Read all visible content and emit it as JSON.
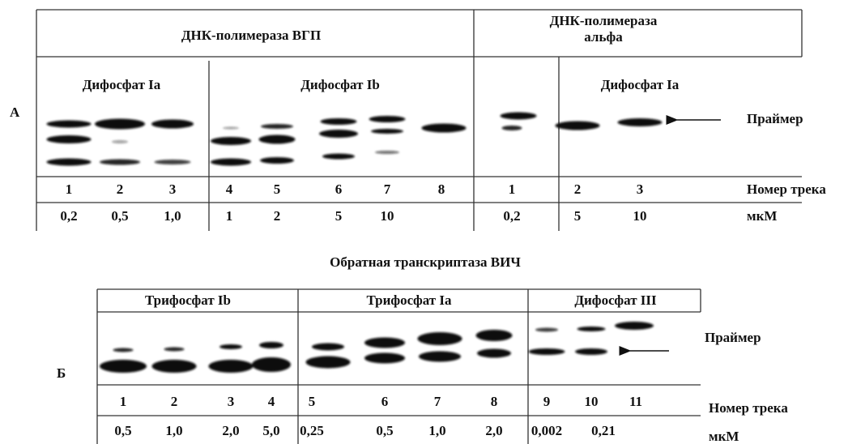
{
  "panel_a": {
    "label": "А",
    "enzyme_1": "ДНК-полимераза ВГП",
    "enzyme_2": [
      "ДНК-полимераза",
      "альфа"
    ],
    "groups": [
      "Дифосфат Ia",
      "Дифосфат Ib",
      "Дифосфат Ia"
    ],
    "band_label": "Праймер",
    "tracks": [
      1,
      2,
      3,
      4,
      5,
      6,
      7,
      8,
      1,
      2,
      3
    ],
    "track_label": "Номер трека",
    "concentrations": [
      "0,2",
      "0,5",
      "1,0",
      "1",
      "2",
      "5",
      "10",
      "0,2",
      "5",
      "10"
    ],
    "unit": "мкМ"
  },
  "title_b": "Обратная транскриптаза ВИЧ",
  "panel_b": {
    "label": "Б",
    "groups": [
      "Трифосфат Ib",
      "Трифосфат Ia",
      "Дифосфат III"
    ],
    "band_label": "Праймер",
    "tracks": [
      1,
      2,
      3,
      4,
      5,
      6,
      7,
      8,
      9,
      10,
      11
    ],
    "track_label": "Номер трека",
    "concentrations": [
      "0,5",
      "1,0",
      "2,0",
      "5,0",
      "0,25",
      "0,5",
      "1,0",
      "2,0",
      "0,002",
      "0,21"
    ],
    "unit": "мкМ"
  }
}
